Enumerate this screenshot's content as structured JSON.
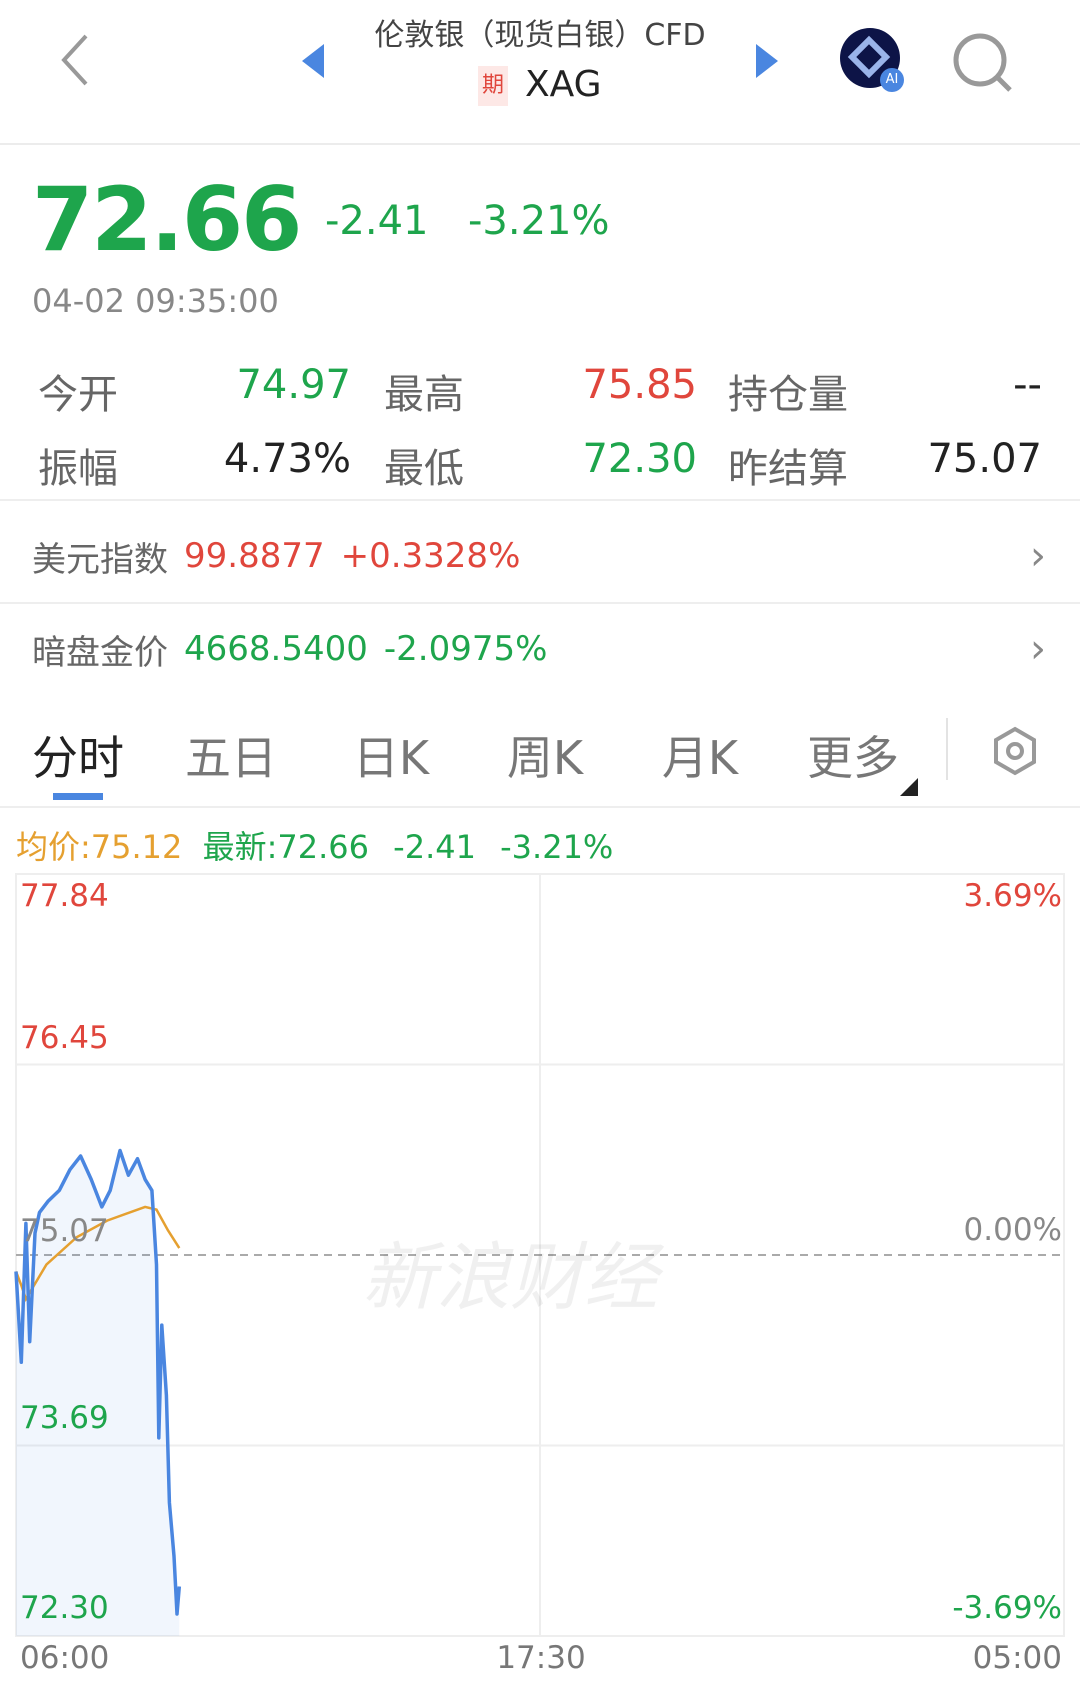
{
  "header": {
    "title": "伦敦银（现货白银）CFD",
    "badge": "期",
    "symbol": "XAG",
    "icons": [
      "back-chevron-icon",
      "prev-triangle-icon",
      "next-triangle-icon",
      "ai-assistant-icon",
      "search-icon"
    ],
    "ai_label": "AI"
  },
  "quote": {
    "price": "72.66",
    "change": "-2.41",
    "change_pct": "-3.21%",
    "time": "04-02 09:35:00",
    "stats": [
      {
        "label": "今开",
        "value": "74.97",
        "color": "green"
      },
      {
        "label": "最高",
        "value": "75.85",
        "color": "red"
      },
      {
        "label": "持仓量",
        "value": "--",
        "color": "black"
      },
      {
        "label": "振幅",
        "value": "4.73%",
        "color": "black"
      },
      {
        "label": "最低",
        "value": "72.30",
        "color": "green"
      },
      {
        "label": "昨结算",
        "value": "75.07",
        "color": "black"
      }
    ]
  },
  "related": [
    {
      "label": "美元指数",
      "value": "99.8877",
      "change": "+0.3328%",
      "color": "red"
    },
    {
      "label": "暗盘金价",
      "value": "4668.5400",
      "change": "-2.0975%",
      "color": "green"
    }
  ],
  "tabs": [
    {
      "label": "分时",
      "active": true
    },
    {
      "label": "五日"
    },
    {
      "label": "日K"
    },
    {
      "label": "周K"
    },
    {
      "label": "月K"
    },
    {
      "label": "更多"
    }
  ],
  "legend": {
    "avg": "均价:75.12",
    "latest": "最新:72.66",
    "change": "-2.41",
    "change_pct": "-3.21%"
  },
  "colors": {
    "up": "#e0463c",
    "down": "#1ea54c",
    "price_line": "#4a86e0",
    "avg_line": "#e5a030",
    "accent": "#4a86e0"
  },
  "watermark": "新浪财经",
  "chart_data": {
    "type": "line",
    "ylim": [
      72.3,
      77.84
    ],
    "prev_settle": 75.07,
    "y_ticks_left": [
      "77.84",
      "76.45",
      "75.07",
      "73.69",
      "72.30"
    ],
    "y_ticks_right": [
      "3.69%",
      "0.00%",
      "-3.69%"
    ],
    "x_ticks": [
      "06:00",
      "17:30",
      "05:00"
    ],
    "x_range": [
      "06:00",
      "05:00"
    ],
    "grid": true,
    "series": [
      {
        "key": "price",
        "x": [
          "06:00",
          "06:07",
          "06:13",
          "06:18",
          "06:25",
          "06:31",
          "06:42",
          "06:57",
          "07:11",
          "07:25",
          "07:39",
          "07:53",
          "08:04",
          "08:17",
          "08:28",
          "08:40",
          "08:50",
          "08:59",
          "09:05",
          "09:08",
          "09:12",
          "09:18",
          "09:22",
          "09:28",
          "09:32",
          "09:35"
        ],
        "values": [
          74.95,
          74.29,
          75.3,
          74.44,
          75.23,
          75.38,
          75.46,
          75.54,
          75.69,
          75.79,
          75.62,
          75.42,
          75.54,
          75.83,
          75.65,
          75.77,
          75.62,
          75.54,
          75.0,
          73.74,
          74.56,
          74.05,
          73.27,
          72.88,
          72.46,
          72.66
        ]
      },
      {
        "key": "avg",
        "x": [
          "06:00",
          "06:07",
          "06:13",
          "06:40",
          "07:20",
          "08:00",
          "08:50",
          "09:05",
          "09:20",
          "09:35"
        ],
        "values": [
          74.95,
          74.85,
          74.75,
          75.0,
          75.2,
          75.32,
          75.42,
          75.4,
          75.25,
          75.12
        ]
      }
    ]
  }
}
